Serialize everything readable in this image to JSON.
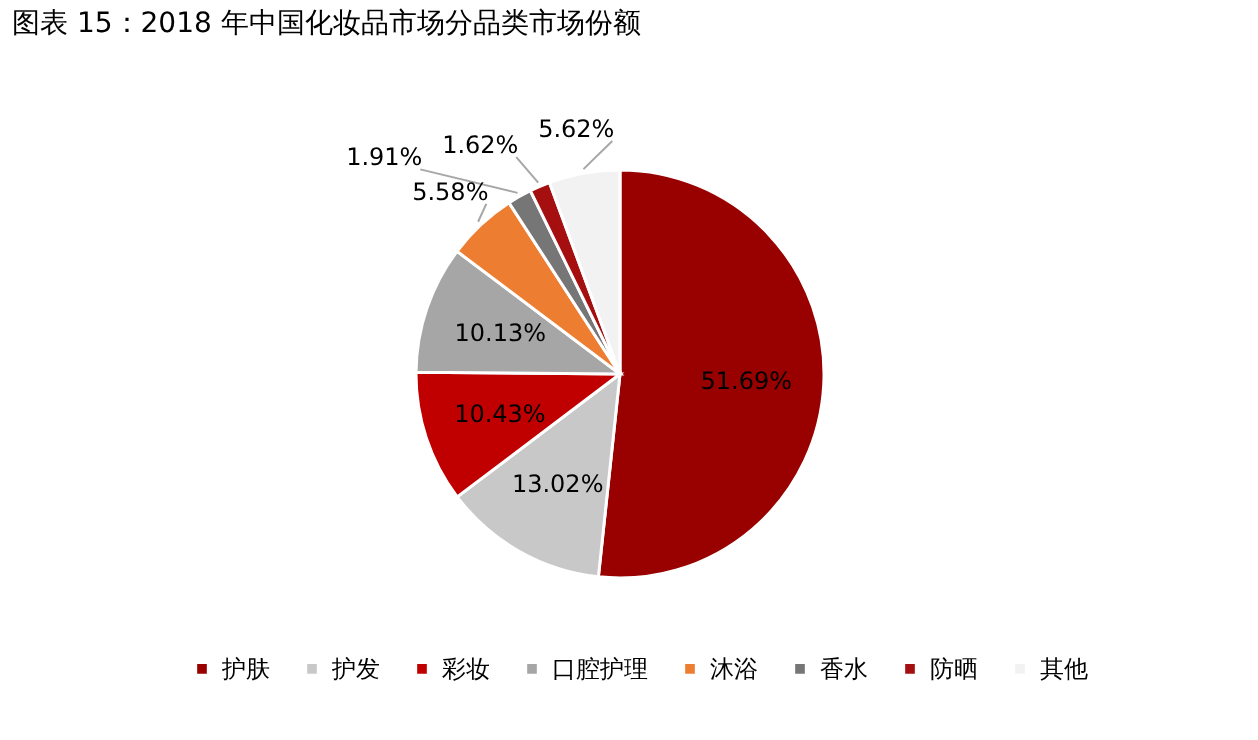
{
  "chart_data": {
    "type": "pie",
    "title": "图表 15：2018 年中国化妆品市场分品类市场份额",
    "categories": [
      "护肤",
      "护发",
      "彩妆",
      "口腔护理",
      "沐浴",
      "香水",
      "防晒",
      "其他"
    ],
    "values": [
      51.69,
      13.02,
      10.43,
      10.13,
      5.58,
      1.91,
      1.62,
      5.62
    ],
    "colors": [
      "#990000",
      "#c8c8c8",
      "#c00000",
      "#a6a6a6",
      "#ed7d31",
      "#767676",
      "#a50f0f",
      "#f2f2f2"
    ],
    "value_labels": [
      "51.69%",
      "13.02%",
      "10.43%",
      "10.13%",
      "5.58%",
      "1.91%",
      "1.62%",
      "5.62%"
    ],
    "legend": "bottom"
  }
}
